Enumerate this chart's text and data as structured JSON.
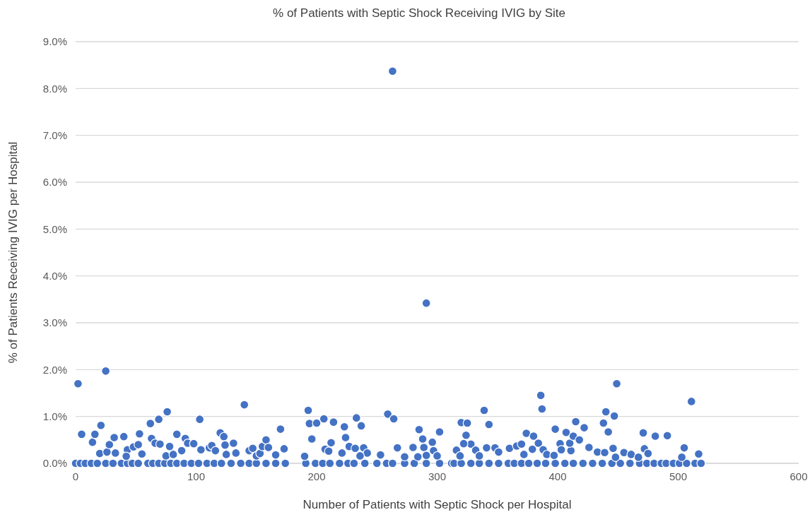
{
  "chart_data": {
    "type": "scatter",
    "title": "% of Patients with Septic Shock Receiving IVIG by Site",
    "xlabel": "Number of Patients with Septic Shock per Hospital",
    "ylabel": "% of Patients Receiving IVIG per Hospital",
    "xlim": [
      0,
      600
    ],
    "xticks": [
      0,
      100,
      200,
      300,
      400,
      500,
      600
    ],
    "ylim": [
      0,
      9
    ],
    "yticks": [
      {
        "value": 0,
        "label": "0.0%"
      },
      {
        "value": 1,
        "label": "1.0%"
      },
      {
        "value": 2,
        "label": "2.0%"
      },
      {
        "value": 3,
        "label": "3.0%"
      },
      {
        "value": 4,
        "label": "4.0%"
      },
      {
        "value": 5,
        "label": "5.0%"
      },
      {
        "value": 6,
        "label": "6.0%"
      },
      {
        "value": 7,
        "label": "7.0%"
      },
      {
        "value": 8,
        "label": "8.0%"
      },
      {
        "value": 9,
        "label": "9.0%"
      }
    ],
    "grid": "y",
    "marker": "circle",
    "series": [
      {
        "color": "#4472c4",
        "x": [
          0,
          4,
          8,
          13,
          18,
          25,
          31,
          38,
          43,
          47,
          52,
          60,
          64,
          69,
          74,
          79,
          84,
          90,
          96,
          102,
          109,
          115,
          121,
          129,
          137,
          144,
          150,
          158,
          166,
          174,
          191,
          199,
          205,
          211,
          219,
          226,
          231,
          240,
          250,
          258,
          263,
          273,
          281,
          291,
          302,
          312,
          314,
          320,
          328,
          335,
          343,
          351,
          359,
          364,
          370,
          376,
          383,
          390,
          398,
          406,
          413,
          421,
          429,
          437,
          445,
          452,
          460,
          468,
          474,
          480,
          486,
          490,
          496,
          501,
          507,
          514,
          519,
          2,
          25,
          5,
          14,
          16,
          21,
          20,
          26,
          28,
          32,
          33,
          40,
          43,
          42,
          48,
          52,
          53,
          55,
          62,
          63,
          66,
          69,
          70,
          76,
          78,
          75,
          81,
          84,
          88,
          91,
          93,
          98,
          103,
          104,
          111,
          113,
          116,
          120,
          123,
          124,
          125,
          131,
          133,
          140,
          144,
          147,
          150,
          153,
          155,
          158,
          160,
          170,
          173,
          166,
          190,
          193,
          194,
          196,
          200,
          206,
          214,
          207,
          210,
          212,
          223,
          224,
          227,
          221,
          233,
          237,
          232,
          239,
          242,
          236,
          253,
          259,
          264,
          267,
          273,
          284,
          285,
          288,
          280,
          289,
          296,
          297,
          302,
          300,
          291,
          320,
          325,
          324,
          328,
          322,
          316,
          319,
          332,
          335,
          341,
          339,
          343,
          348,
          351,
          360,
          366,
          370,
          372,
          374,
          380,
          379,
          384,
          386,
          387,
          388,
          391,
          398,
          397,
          402,
          403,
          407,
          411,
          410,
          413,
          415,
          418,
          422,
          426,
          433,
          439,
          438,
          440,
          442,
          447,
          449,
          446,
          448,
          455,
          461,
          467,
          471,
          472,
          475,
          481,
          491,
          505,
          503,
          511,
          517,
          263,
          291
        ],
        "values": [
          0,
          0,
          0,
          0,
          0,
          0,
          0,
          0,
          0,
          0,
          0,
          0,
          0,
          0,
          0,
          0,
          0,
          0,
          0,
          0,
          0,
          0,
          0,
          0,
          0,
          0,
          0,
          0,
          0,
          0,
          0,
          0,
          0,
          0,
          0,
          0,
          0,
          0,
          0,
          0,
          0,
          0,
          0,
          0,
          0,
          0,
          0,
          0,
          0,
          0,
          0,
          0,
          0,
          0,
          0,
          0,
          0,
          0,
          0,
          0,
          0,
          0,
          0,
          0,
          0,
          0,
          0,
          0,
          0,
          0,
          0,
          0,
          0,
          0,
          0,
          0,
          0,
          1.7,
          1.97,
          0.62,
          0.45,
          0.62,
          0.81,
          0.21,
          0.24,
          0.4,
          0.55,
          0.22,
          0.57,
          0.29,
          0.15,
          0.35,
          0.4,
          0.63,
          0.2,
          0.85,
          0.53,
          0.43,
          0.94,
          0.41,
          1.1,
          0.36,
          0.16,
          0.19,
          0.62,
          0.27,
          0.53,
          0.43,
          0.42,
          0.94,
          0.29,
          0.33,
          0.38,
          0.27,
          0.65,
          0.57,
          0.39,
          0.19,
          0.43,
          0.22,
          1.25,
          0.27,
          0.32,
          0.16,
          0.21,
          0.36,
          0.5,
          0.34,
          0.73,
          0.31,
          0.18,
          0.15,
          1.13,
          0.85,
          0.52,
          0.86,
          0.95,
          0.88,
          0.3,
          0.26,
          0.44,
          0.78,
          0.55,
          0.36,
          0.22,
          0.97,
          0.8,
          0.32,
          0.33,
          0.22,
          0.16,
          0.18,
          1.05,
          0.95,
          0.33,
          0.14,
          0.14,
          0.72,
          0.52,
          0.34,
          0.34,
          0.45,
          0.27,
          0.67,
          0.16,
          0.17,
          0.87,
          0.86,
          0.6,
          0.41,
          0.42,
          0.28,
          0.16,
          0.28,
          0.16,
          0.33,
          1.13,
          0.83,
          0.33,
          0.24,
          0.32,
          0.37,
          0.41,
          0.19,
          0.64,
          0.58,
          0.3,
          0.43,
          1.45,
          1.16,
          0.29,
          0.19,
          0.73,
          0.17,
          0.42,
          0.29,
          0.66,
          0.27,
          0.43,
          0.58,
          0.89,
          0.5,
          0.76,
          0.34,
          0.24,
          0.23,
          0.86,
          1.1,
          0.67,
          1.01,
          1.7,
          0.32,
          0.13,
          0.23,
          0.19,
          0.13,
          0.65,
          0.31,
          0.21,
          0.58,
          0.59,
          0.33,
          0.13,
          1.32,
          0.2,
          8.37,
          3.42
        ]
      }
    ]
  }
}
